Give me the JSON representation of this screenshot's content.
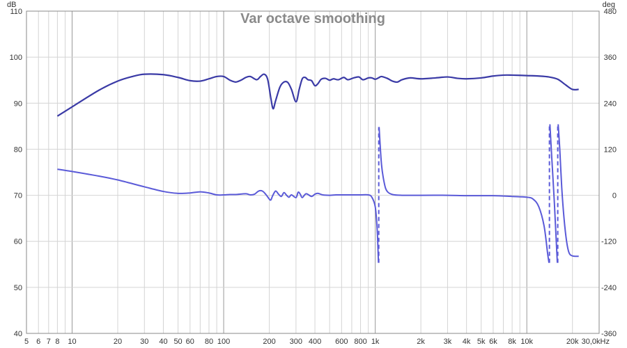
{
  "chart_data": {
    "type": "line",
    "title": "Var octave smoothing",
    "x_scale": "log",
    "xlim": [
      5,
      30000
    ],
    "ylim_left": [
      40,
      110
    ],
    "ylim_right": [
      -360,
      480
    ],
    "left_unit": "dB",
    "right_unit": "deg",
    "x_ticks": [
      {
        "v": 5,
        "label": "5"
      },
      {
        "v": 6,
        "label": "6"
      },
      {
        "v": 7,
        "label": "7"
      },
      {
        "v": 8,
        "label": "8"
      },
      {
        "v": 10,
        "label": "10"
      },
      {
        "v": 20,
        "label": "20"
      },
      {
        "v": 30,
        "label": "30"
      },
      {
        "v": 40,
        "label": "40"
      },
      {
        "v": 50,
        "label": "50"
      },
      {
        "v": 60,
        "label": "60"
      },
      {
        "v": 80,
        "label": "80"
      },
      {
        "v": 100,
        "label": "100"
      },
      {
        "v": 200,
        "label": "200"
      },
      {
        "v": 300,
        "label": "300"
      },
      {
        "v": 400,
        "label": "400"
      },
      {
        "v": 600,
        "label": "600"
      },
      {
        "v": 800,
        "label": "800"
      },
      {
        "v": 1000,
        "label": "1k"
      },
      {
        "v": 2000,
        "label": "2k"
      },
      {
        "v": 3000,
        "label": "3k"
      },
      {
        "v": 4000,
        "label": "4k"
      },
      {
        "v": 5000,
        "label": "5k"
      },
      {
        "v": 6000,
        "label": "6k"
      },
      {
        "v": 8000,
        "label": "8k"
      },
      {
        "v": 10000,
        "label": "10k"
      },
      {
        "v": 20000,
        "label": "20k"
      },
      {
        "v": 30000,
        "label": "30,0kHz"
      }
    ],
    "y_ticks_left": [
      110,
      100,
      90,
      80,
      70,
      60,
      50,
      40
    ],
    "y_ticks_right": [
      480,
      360,
      240,
      120,
      0,
      -120,
      -240,
      -360
    ],
    "grid": true,
    "colors": {
      "spl": "#3a3aa6",
      "phase": "#5a5ad8",
      "grid_minor": "#d4d4d4",
      "grid_major": "#9a9a9a",
      "frame": "#888888"
    },
    "series": [
      {
        "axis": "left",
        "points": [
          [
            8,
            87.2
          ],
          [
            10,
            89.2
          ],
          [
            15,
            92.8
          ],
          [
            20,
            94.8
          ],
          [
            25,
            95.8
          ],
          [
            30,
            96.3
          ],
          [
            40,
            96.2
          ],
          [
            50,
            95.6
          ],
          [
            60,
            94.9
          ],
          [
            70,
            94.8
          ],
          [
            80,
            95.3
          ],
          [
            90,
            95.8
          ],
          [
            100,
            95.8
          ],
          [
            110,
            95.0
          ],
          [
            120,
            94.6
          ],
          [
            130,
            95.0
          ],
          [
            140,
            95.6
          ],
          [
            150,
            95.8
          ],
          [
            165,
            95.1
          ],
          [
            175,
            95.8
          ],
          [
            185,
            96.3
          ],
          [
            195,
            95.2
          ],
          [
            205,
            91.0
          ],
          [
            212,
            88.8
          ],
          [
            220,
            90.5
          ],
          [
            235,
            93.5
          ],
          [
            250,
            94.6
          ],
          [
            265,
            94.5
          ],
          [
            280,
            93.0
          ],
          [
            300,
            90.3
          ],
          [
            315,
            93.0
          ],
          [
            330,
            95.3
          ],
          [
            345,
            95.6
          ],
          [
            360,
            95.1
          ],
          [
            380,
            94.9
          ],
          [
            400,
            93.8
          ],
          [
            420,
            94.3
          ],
          [
            440,
            95.2
          ],
          [
            470,
            95.4
          ],
          [
            500,
            95.0
          ],
          [
            530,
            95.3
          ],
          [
            570,
            95.1
          ],
          [
            620,
            95.6
          ],
          [
            660,
            95.1
          ],
          [
            720,
            95.5
          ],
          [
            780,
            95.7
          ],
          [
            830,
            95.1
          ],
          [
            900,
            95.5
          ],
          [
            950,
            95.5
          ],
          [
            1000,
            95.2
          ],
          [
            1050,
            95.5
          ],
          [
            1100,
            95.8
          ],
          [
            1200,
            95.4
          ],
          [
            1300,
            94.8
          ],
          [
            1400,
            94.6
          ],
          [
            1500,
            95.1
          ],
          [
            1700,
            95.5
          ],
          [
            2000,
            95.3
          ],
          [
            2500,
            95.5
          ],
          [
            3000,
            95.7
          ],
          [
            3500,
            95.4
          ],
          [
            4000,
            95.3
          ],
          [
            5000,
            95.5
          ],
          [
            6000,
            95.9
          ],
          [
            7000,
            96.1
          ],
          [
            8000,
            96.1
          ],
          [
            10000,
            96.0
          ],
          [
            12000,
            95.9
          ],
          [
            14000,
            95.7
          ],
          [
            16000,
            95.2
          ],
          [
            18000,
            94.0
          ],
          [
            20000,
            93.0
          ],
          [
            22000,
            93.0
          ]
        ]
      },
      {
        "axis": "right",
        "segments": [
          [
            [
              8,
              68
            ],
            [
              10,
              62
            ],
            [
              15,
              50
            ],
            [
              20,
              40
            ],
            [
              30,
              22
            ],
            [
              40,
              10
            ],
            [
              50,
              5
            ],
            [
              60,
              6
            ],
            [
              70,
              9
            ],
            [
              80,
              6
            ],
            [
              90,
              1
            ],
            [
              100,
              1
            ],
            [
              110,
              2
            ],
            [
              120,
              2
            ],
            [
              140,
              4
            ],
            [
              150,
              1
            ],
            [
              160,
              3
            ],
            [
              170,
              11
            ],
            [
              180,
              11
            ],
            [
              190,
              2
            ],
            [
              200,
              -10
            ],
            [
              205,
              -12
            ],
            [
              210,
              -2
            ],
            [
              220,
              11
            ],
            [
              230,
              3
            ],
            [
              240,
              -3
            ],
            [
              250,
              7
            ],
            [
              260,
              0
            ],
            [
              270,
              -5
            ],
            [
              280,
              1
            ],
            [
              300,
              -6
            ],
            [
              310,
              8
            ],
            [
              320,
              3
            ],
            [
              330,
              -6
            ],
            [
              350,
              4
            ],
            [
              380,
              -3
            ],
            [
              400,
              3
            ],
            [
              420,
              5
            ],
            [
              450,
              1
            ],
            [
              500,
              0
            ],
            [
              550,
              1
            ],
            [
              600,
              1
            ],
            [
              700,
              1
            ],
            [
              800,
              1
            ],
            [
              900,
              1
            ],
            [
              950,
              -5
            ],
            [
              1000,
              -30
            ],
            [
              1030,
              -90
            ],
            [
              1050,
              -176
            ]
          ],
          [
            [
              1060,
              178
            ],
            [
              1100,
              80
            ],
            [
              1150,
              30
            ],
            [
              1200,
              10
            ],
            [
              1300,
              2
            ],
            [
              1500,
              0
            ],
            [
              2000,
              0
            ],
            [
              3000,
              0
            ],
            [
              4000,
              -1
            ],
            [
              6000,
              -1
            ],
            [
              8000,
              -3
            ],
            [
              10000,
              -5
            ],
            [
              11000,
              -10
            ],
            [
              12000,
              -30
            ],
            [
              13000,
              -80
            ],
            [
              13700,
              -150
            ],
            [
              14000,
              -176
            ]
          ],
          [
            [
              14200,
              185
            ],
            [
              14600,
              100
            ],
            [
              15200,
              -20
            ],
            [
              15600,
              -110
            ],
            [
              15900,
              -176
            ]
          ],
          [
            [
              16100,
              185
            ],
            [
              16500,
              120
            ],
            [
              17000,
              20
            ],
            [
              17600,
              -60
            ],
            [
              18300,
              -120
            ],
            [
              19000,
              -150
            ],
            [
              20000,
              -158
            ],
            [
              22000,
              -159
            ]
          ]
        ],
        "wraps": [
          {
            "x": 1055,
            "from": -176,
            "to": 178
          },
          {
            "x": 14100,
            "from": -176,
            "to": 185
          },
          {
            "x": 16000,
            "from": -176,
            "to": 185
          }
        ]
      }
    ]
  }
}
